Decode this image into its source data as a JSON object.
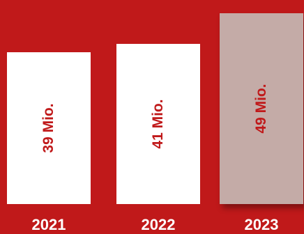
{
  "chart_data": {
    "type": "bar",
    "categories": [
      "2021",
      "2022",
      "2023"
    ],
    "values": [
      39,
      41,
      49
    ],
    "data_labels": [
      "39 Mio.",
      "41 Mio.",
      "49 Mio."
    ],
    "highlight_index": 2,
    "colors": {
      "background": "#c0191a",
      "bar": "#ffffff",
      "bar_highlight": "#c4aba7",
      "label": "#c0191a",
      "category_label": "#ffffff"
    },
    "ylim": [
      0,
      52
    ],
    "grid": false,
    "legend": "none"
  }
}
